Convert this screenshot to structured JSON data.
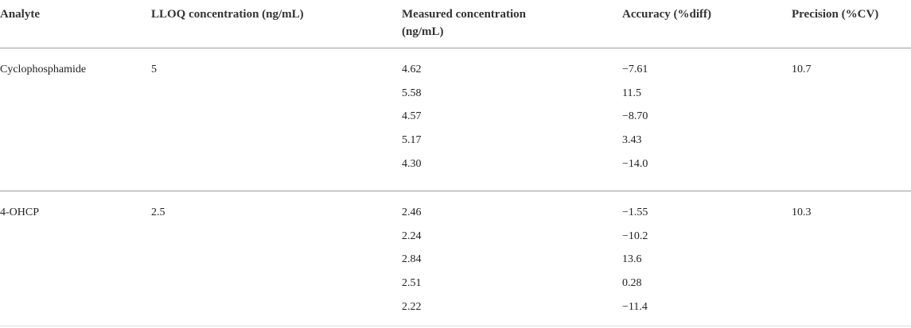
{
  "table": {
    "header": [
      "Analyte",
      "LLOQ concentration (ng/mL)",
      "Measured concentration (ng/mL)",
      "Accuracy (%diff)",
      "Precision (%CV)"
    ],
    "groups": [
      {
        "analyte": "Cyclophosphamide",
        "lloq": "5",
        "measured": [
          "4.62",
          "5.58",
          "4.57",
          "5.17",
          "4.30"
        ],
        "accuracy": [
          "−7.61",
          "11.5",
          "−8.70",
          "3.43",
          "−14.0"
        ],
        "precision": "10.7"
      },
      {
        "analyte": "4-OHCP",
        "lloq": "2.5",
        "measured": [
          "2.46",
          "2.24",
          "2.84",
          "2.51",
          "2.22"
        ],
        "accuracy": [
          "−1.55",
          "−10.2",
          "13.6",
          "0.28",
          "−11.4"
        ],
        "precision": "10.3"
      }
    ]
  }
}
